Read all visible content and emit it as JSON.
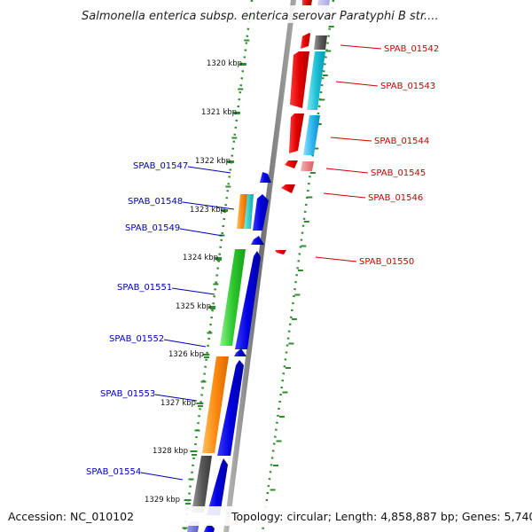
{
  "title": "Salmonella enterica subsp. enterica serovar Paratyphi B str....",
  "footer": {
    "accession": "Accession: NC_010102",
    "stats": "Topology: circular; Length: 4,858,887 bp; Genes: 5,740"
  },
  "colors": {
    "backbone": "#888888",
    "tick_green": "#2e8b2e",
    "label_red": "#cc0000",
    "label_blue": "#0000bb"
  },
  "kbp_marks": [
    "1320 kbp",
    "1321 kbp",
    "1322 kbp",
    "1323 kbp",
    "1324 kbp",
    "1325 kbp",
    "1326 kbp",
    "1327 kbp",
    "1328 kbp",
    "1329 kbp"
  ],
  "right_labels": [
    "SPAB_01542",
    "SPAB_01543",
    "SPAB_01544",
    "SPAB_01545",
    "SPAB_01546",
    "SPAB_01550"
  ],
  "left_labels": [
    "SPAB_01547",
    "SPAB_01548",
    "SPAB_01549",
    "SPAB_01551",
    "SPAB_01552",
    "SPAB_01553",
    "SPAB_01554"
  ]
}
